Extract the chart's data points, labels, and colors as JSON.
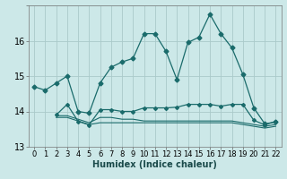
{
  "xlabel": "Humidex (Indice chaleur)",
  "bg_color": "#cce8e8",
  "grid_color": "#aacaca",
  "line_color": "#1a6b6b",
  "xlim": [
    -0.5,
    22.5
  ],
  "ylim": [
    13.0,
    17.0
  ],
  "yticks": [
    13,
    14,
    15,
    16,
    17
  ],
  "xticks": [
    0,
    1,
    2,
    3,
    4,
    5,
    6,
    7,
    8,
    9,
    10,
    11,
    12,
    13,
    14,
    15,
    16,
    17,
    18,
    19,
    20,
    21,
    22
  ],
  "line1_x": [
    0,
    1,
    2,
    3,
    4,
    5,
    6,
    7,
    8,
    9,
    10,
    11,
    12,
    13,
    14,
    15,
    16,
    17,
    18,
    19,
    20,
    21,
    22
  ],
  "line1_y": [
    14.7,
    14.6,
    14.8,
    15.0,
    14.0,
    13.95,
    14.8,
    15.25,
    15.4,
    15.5,
    16.2,
    16.2,
    15.7,
    14.9,
    15.95,
    16.1,
    16.75,
    16.2,
    15.8,
    15.05,
    14.1,
    13.65,
    13.7
  ],
  "line2_x": [
    2,
    3,
    4,
    5,
    6,
    7,
    8,
    9,
    10,
    11,
    12,
    13,
    14,
    15,
    16,
    17,
    18,
    19,
    20,
    21,
    22
  ],
  "line2_y": [
    13.9,
    14.2,
    13.72,
    13.62,
    14.05,
    14.05,
    14.0,
    14.0,
    14.1,
    14.1,
    14.1,
    14.12,
    14.2,
    14.2,
    14.2,
    14.15,
    14.2,
    14.2,
    13.75,
    13.62,
    13.72
  ],
  "line3_x": [
    2,
    3,
    4,
    5,
    6,
    7,
    8,
    9,
    10,
    11,
    12,
    13,
    14,
    15,
    16,
    17,
    18,
    19,
    20,
    21,
    22
  ],
  "line3_y": [
    13.88,
    13.88,
    13.78,
    13.68,
    13.83,
    13.83,
    13.78,
    13.78,
    13.73,
    13.73,
    13.73,
    13.73,
    13.73,
    13.73,
    13.73,
    13.73,
    13.73,
    13.68,
    13.63,
    13.58,
    13.63
  ],
  "line4_x": [
    2,
    3,
    4,
    5,
    6,
    7,
    8,
    9,
    10,
    11,
    12,
    13,
    14,
    15,
    16,
    17,
    18,
    19,
    20,
    21,
    22
  ],
  "line4_y": [
    13.83,
    13.83,
    13.73,
    13.63,
    13.68,
    13.68,
    13.68,
    13.68,
    13.68,
    13.68,
    13.68,
    13.68,
    13.68,
    13.68,
    13.68,
    13.68,
    13.68,
    13.63,
    13.58,
    13.53,
    13.58
  ],
  "xlabel_fontsize": 7,
  "xlabel_color": "#1a4a4a",
  "tick_fontsize": 6,
  "ytick_fontsize": 7
}
